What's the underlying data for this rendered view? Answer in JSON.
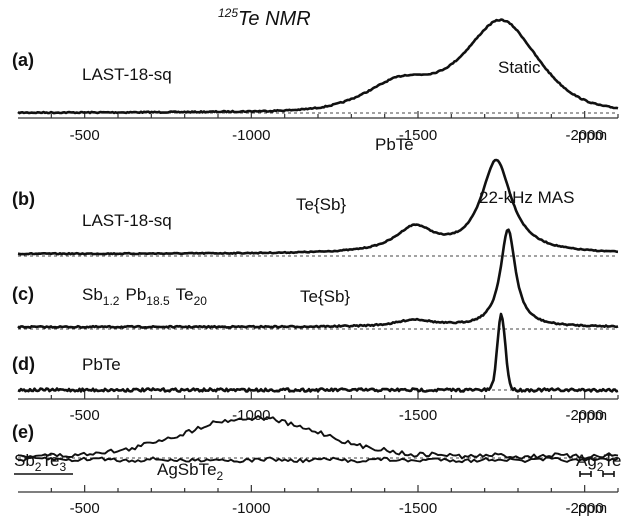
{
  "title": {
    "superscript": "125",
    "main": "Te NMR"
  },
  "colors": {
    "trace": "#111111",
    "baseline": "#444444",
    "axis": "#333333",
    "background": "#ffffff"
  },
  "chart_data": {
    "type": "line",
    "title": "125Te NMR",
    "x_unit": "ppm",
    "x_reversed": true,
    "xlim": [
      -300,
      -2100
    ],
    "xticks": [
      -500,
      -1000,
      -1500,
      -2000
    ],
    "panels": [
      {
        "id": "a",
        "panel_label": "(a)",
        "sample_label": "LAST-18-sq",
        "condition_label": "Static",
        "axis": true,
        "x_tick_labels": [
          "-500",
          "-1000",
          "-1500",
          "-2000"
        ],
        "x_axis_label": "ppm",
        "peaks": [
          {
            "position_ppm": -1750,
            "relative_height": 1.0,
            "width_ppm": 230
          },
          {
            "position_ppm": -1450,
            "relative_height": 0.33,
            "width_ppm": 220
          }
        ]
      },
      {
        "id": "b",
        "panel_label": "(b)",
        "sample_label": "LAST-18-sq",
        "condition_label": "22-kHz MAS",
        "axis": false,
        "annotations": [
          {
            "text": "PbTe",
            "position_ppm": -1735
          },
          {
            "text": "Te{Sb}",
            "position_ppm": -1490
          }
        ],
        "peaks": [
          {
            "position_ppm": -1735,
            "relative_height": 1.0,
            "width_ppm": 110
          },
          {
            "position_ppm": -1490,
            "relative_height": 0.27,
            "width_ppm": 140
          }
        ]
      },
      {
        "id": "c",
        "panel_label": "(c)",
        "sample_label_parts": [
          {
            "text": "Sb",
            "sub": "1.2"
          },
          {
            "text": "Pb",
            "sub": "18.5"
          },
          {
            "text": "Te",
            "sub": "20"
          }
        ],
        "axis": false,
        "annotations": [
          {
            "text": "Te{Sb}",
            "position_ppm": -1490
          }
        ],
        "peaks": [
          {
            "position_ppm": -1770,
            "relative_height": 1.0,
            "width_ppm": 55
          },
          {
            "position_ppm": -1490,
            "relative_height": 0.07,
            "width_ppm": 130
          }
        ]
      },
      {
        "id": "d",
        "panel_label": "(d)",
        "sample_label": "PbTe",
        "axis": true,
        "x_tick_labels": [
          "-500",
          "-1000",
          "-1500",
          "-2000"
        ],
        "x_axis_label": "ppm",
        "peaks": [
          {
            "position_ppm": -1750,
            "relative_height": 1.0,
            "width_ppm": 28
          }
        ]
      },
      {
        "id": "e",
        "panel_label": "(e)",
        "axis": true,
        "x_tick_labels": [
          "-500",
          "-1000",
          "-1500",
          "-2000"
        ],
        "x_axis_label": "ppm",
        "compound_labels": [
          {
            "parts": [
              {
                "text": "Sb"
              },
              {
                "text": "2",
                "sub": true
              },
              {
                "text": "Te"
              },
              {
                "text": "3",
                "sub": true
              }
            ]
          },
          {
            "parts": [
              {
                "text": "AgSbTe"
              },
              {
                "text": "2",
                "sub": true
              }
            ]
          },
          {
            "parts": [
              {
                "text": "Ag"
              },
              {
                "text": "2",
                "sub": true
              },
              {
                "text": "Te"
              }
            ]
          }
        ],
        "traces": [
          {
            "name": "AgSbTe2",
            "broad_peak": {
              "center_ppm": -1000,
              "width_ppm": 480,
              "relative_height": 1.0
            }
          },
          {
            "name": "Sb2Te3",
            "broad_peak": {
              "center_ppm": -450,
              "width_ppm": 300,
              "relative_height": 0.1
            }
          }
        ]
      }
    ]
  }
}
